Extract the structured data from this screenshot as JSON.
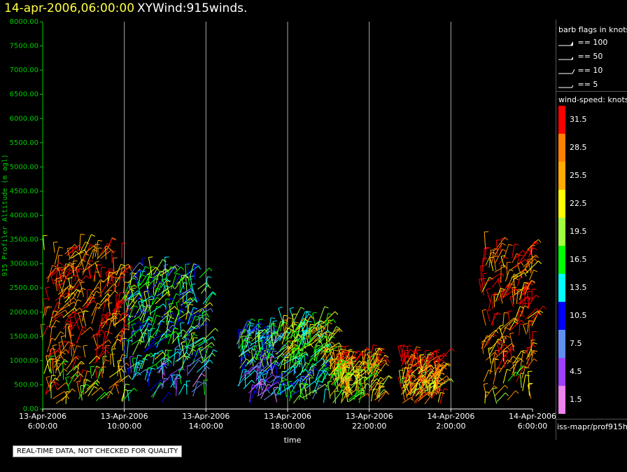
{
  "header": {
    "date_time": "14-apr-2006,06:00:00",
    "plot_name": "XYWind:915winds."
  },
  "legend": {
    "barb_title": "barb flags in knots",
    "barbs": [
      {
        "label": "== 100",
        "knots": 100
      },
      {
        "label": "== 50",
        "knots": 50
      },
      {
        "label": "== 10",
        "knots": 10
      },
      {
        "label": "== 5",
        "knots": 5
      }
    ],
    "speed_title": "wind-speed: knots",
    "speed_levels": [
      {
        "label": "31.5",
        "color": "#ff0000"
      },
      {
        "label": "28.5",
        "color": "#ff8000"
      },
      {
        "label": "25.5",
        "color": "#ffaa00"
      },
      {
        "label": "22.5",
        "color": "#ffff00"
      },
      {
        "label": "19.5",
        "color": "#a0ff40"
      },
      {
        "label": "16.5",
        "color": "#00ff00"
      },
      {
        "label": "13.5",
        "color": "#00ffff"
      },
      {
        "label": "10.5",
        "color": "#0000ff"
      },
      {
        "label": "7.5",
        "color": "#6090f0"
      },
      {
        "label": "4.5",
        "color": "#a040ff"
      },
      {
        "label": "1.5",
        "color": "#ee82ee"
      }
    ],
    "source": "iss-mapr/prof915h"
  },
  "footer": {
    "disclaimer": "REAL-TIME DATA, NOT CHECKED FOR QUALITY"
  },
  "chart_data": {
    "type": "scatter",
    "xlabel": "time",
    "ylabel": "915 Profiler Altitude (m agl)",
    "ylim": [
      0,
      8000
    ],
    "xlim": [
      "13-Apr-2006 6:00:00",
      "14-Apr-2006 6:00:00"
    ],
    "x_ticks": [
      {
        "date": "13-Apr-2006",
        "time": "6:00:00"
      },
      {
        "date": "13-Apr-2006",
        "time": "10:00:00"
      },
      {
        "date": "13-Apr-2006",
        "time": "14:00:00"
      },
      {
        "date": "13-Apr-2006",
        "time": "18:00:00"
      },
      {
        "date": "13-Apr-2006",
        "time": "22:00:00"
      },
      {
        "date": "14-Apr-2006",
        "time": "2:00:00"
      },
      {
        "date": "14-Apr-2006",
        "time": "6:00:00"
      }
    ],
    "y_ticks": [
      "0.00",
      "500.00",
      "1000.00",
      "1500.00",
      "2000.00",
      "2500.00",
      "3000.00",
      "3500.00",
      "4000.00",
      "4500.00",
      "5000.00",
      "5500.00",
      "6000.00",
      "6500.00",
      "7000.00",
      "7500.00",
      "8000.00"
    ],
    "grid": "vertical",
    "colors": {
      "axis": "#00cc00",
      "grid": "#aaaaaa"
    },
    "series": [
      {
        "hours": [
          0.0,
          4.0
        ],
        "top_m": 3300,
        "speed_knots": 30
      },
      {
        "hours": [
          4.0,
          8.0
        ],
        "top_m": 2800,
        "speed_knots": 15
      },
      {
        "hours": [
          9.5,
          11.5
        ],
        "top_m": 1600,
        "speed_knots": 14
      },
      {
        "hours": [
          11.5,
          14.0
        ],
        "top_m": 1800,
        "speed_knots": 20
      },
      {
        "hours": [
          14.0,
          16.5
        ],
        "top_m": 1000,
        "speed_knots": 29
      },
      {
        "hours": [
          17.5,
          19.5
        ],
        "top_m": 1000,
        "speed_knots": 32
      },
      {
        "hours": [
          21.5,
          24.0
        ],
        "top_m": 3300,
        "speed_knots": 30
      }
    ]
  }
}
